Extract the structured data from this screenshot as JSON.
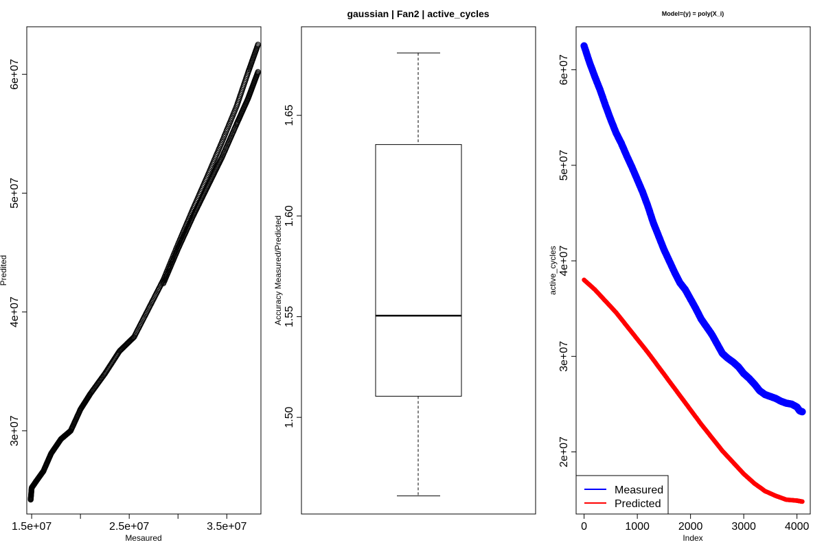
{
  "chart_data": [
    {
      "type": "scatter",
      "title": "",
      "xlabel": "Mesaured",
      "ylabel": "Predited",
      "xlim": [
        14500000,
        38500000
      ],
      "ylim": [
        23000000,
        64000000
      ],
      "xticks": [
        15000000,
        20000000,
        25000000,
        30000000,
        35000000
      ],
      "xtick_labels": [
        "1.5e+07",
        "",
        "2.5e+07",
        "",
        "3.5e+07"
      ],
      "yticks": [
        30000000,
        40000000,
        50000000,
        60000000
      ],
      "ytick_labels": [
        "3e+07",
        "4e+07",
        "5e+07",
        "6e+07"
      ],
      "series": [
        {
          "name": "upper",
          "color": "#000000",
          "x": [
            14900000,
            15000000,
            15500000,
            16200000,
            17000000,
            18000000,
            19000000,
            20000000,
            21000000,
            22500000,
            24000000,
            25500000,
            27000000,
            28500000,
            30000000,
            31500000,
            33000000,
            34500000,
            36000000,
            37200000,
            38200000
          ],
          "y": [
            24200000,
            25200000,
            25800000,
            26600000,
            28100000,
            29300000,
            30000000,
            31800000,
            33100000,
            34800000,
            36700000,
            37900000,
            40300000,
            42700000,
            45700000,
            48600000,
            51400000,
            54300000,
            57300000,
            60200000,
            62500000
          ]
        },
        {
          "name": "lower",
          "color": "#000000",
          "x": [
            28500000,
            30000000,
            31500000,
            33000000,
            34500000,
            36000000,
            37200000,
            38200000
          ],
          "y": [
            42400000,
            45300000,
            48000000,
            50500000,
            53000000,
            55800000,
            58000000,
            60200000
          ]
        }
      ]
    },
    {
      "type": "box",
      "title": "gaussian | Fan2 | active_cycles",
      "xlabel": "",
      "ylabel": "Accuracy  Measured/Predicted",
      "ylim": [
        1.452,
        1.694
      ],
      "yticks": [
        1.5,
        1.55,
        1.6,
        1.65
      ],
      "ytick_labels": [
        "1.50",
        "1.55",
        "1.60",
        "1.65"
      ],
      "whisker_low": 1.461,
      "q1": 1.5105,
      "median": 1.5505,
      "q3": 1.6355,
      "whisker_high": 1.681
    },
    {
      "type": "line",
      "title": "Model=(y) = poly(X_i)",
      "xlabel": "Index",
      "ylabel": "active_cycles",
      "xlim": [
        -150,
        4250
      ],
      "ylim": [
        13500000,
        64500000
      ],
      "xticks": [
        0,
        1000,
        2000,
        3000,
        4000
      ],
      "xtick_labels": [
        "0",
        "1000",
        "2000",
        "3000",
        "4000"
      ],
      "yticks": [
        20000000,
        30000000,
        40000000,
        50000000,
        60000000
      ],
      "ytick_labels": [
        "2e+07",
        "3e+07",
        "4e+07",
        "5e+07",
        "6e+07"
      ],
      "legend_position": "bottom-left",
      "series": [
        {
          "name": "Measured",
          "color": "#0000ff",
          "x": [
            0,
            100,
            200,
            300,
            400,
            500,
            600,
            700,
            800,
            900,
            1000,
            1100,
            1200,
            1300,
            1400,
            1500,
            1600,
            1700,
            1800,
            1900,
            2000,
            2100,
            2200,
            2300,
            2400,
            2500,
            2600,
            2700,
            2800,
            2900,
            3000,
            3100,
            3200,
            3300,
            3400,
            3500,
            3600,
            3700,
            3800,
            3900,
            4000,
            4050,
            4100
          ],
          "y": [
            62500000,
            60800000,
            59300000,
            57900000,
            56300000,
            54800000,
            53400000,
            52300000,
            51000000,
            49800000,
            48500000,
            47200000,
            45700000,
            44000000,
            42600000,
            41200000,
            40000000,
            38800000,
            37700000,
            37000000,
            36000000,
            35000000,
            33900000,
            33100000,
            32300000,
            31300000,
            30300000,
            29800000,
            29400000,
            28900000,
            28200000,
            27700000,
            27100000,
            26400000,
            26000000,
            25800000,
            25600000,
            25300000,
            25100000,
            25000000,
            24700000,
            24300000,
            24200000
          ]
        },
        {
          "name": "Predicted",
          "color": "#ff0000",
          "x": [
            0,
            200,
            400,
            600,
            800,
            1000,
            1200,
            1400,
            1600,
            1800,
            2000,
            2200,
            2400,
            2600,
            2800,
            3000,
            3200,
            3400,
            3600,
            3800,
            4000,
            4100
          ],
          "y": [
            38000000,
            37000000,
            35800000,
            34600000,
            33200000,
            31800000,
            30400000,
            28900000,
            27400000,
            25900000,
            24400000,
            22900000,
            21500000,
            20100000,
            18900000,
            17700000,
            16700000,
            15900000,
            15400000,
            15000000,
            14900000,
            14800000
          ]
        }
      ]
    }
  ]
}
